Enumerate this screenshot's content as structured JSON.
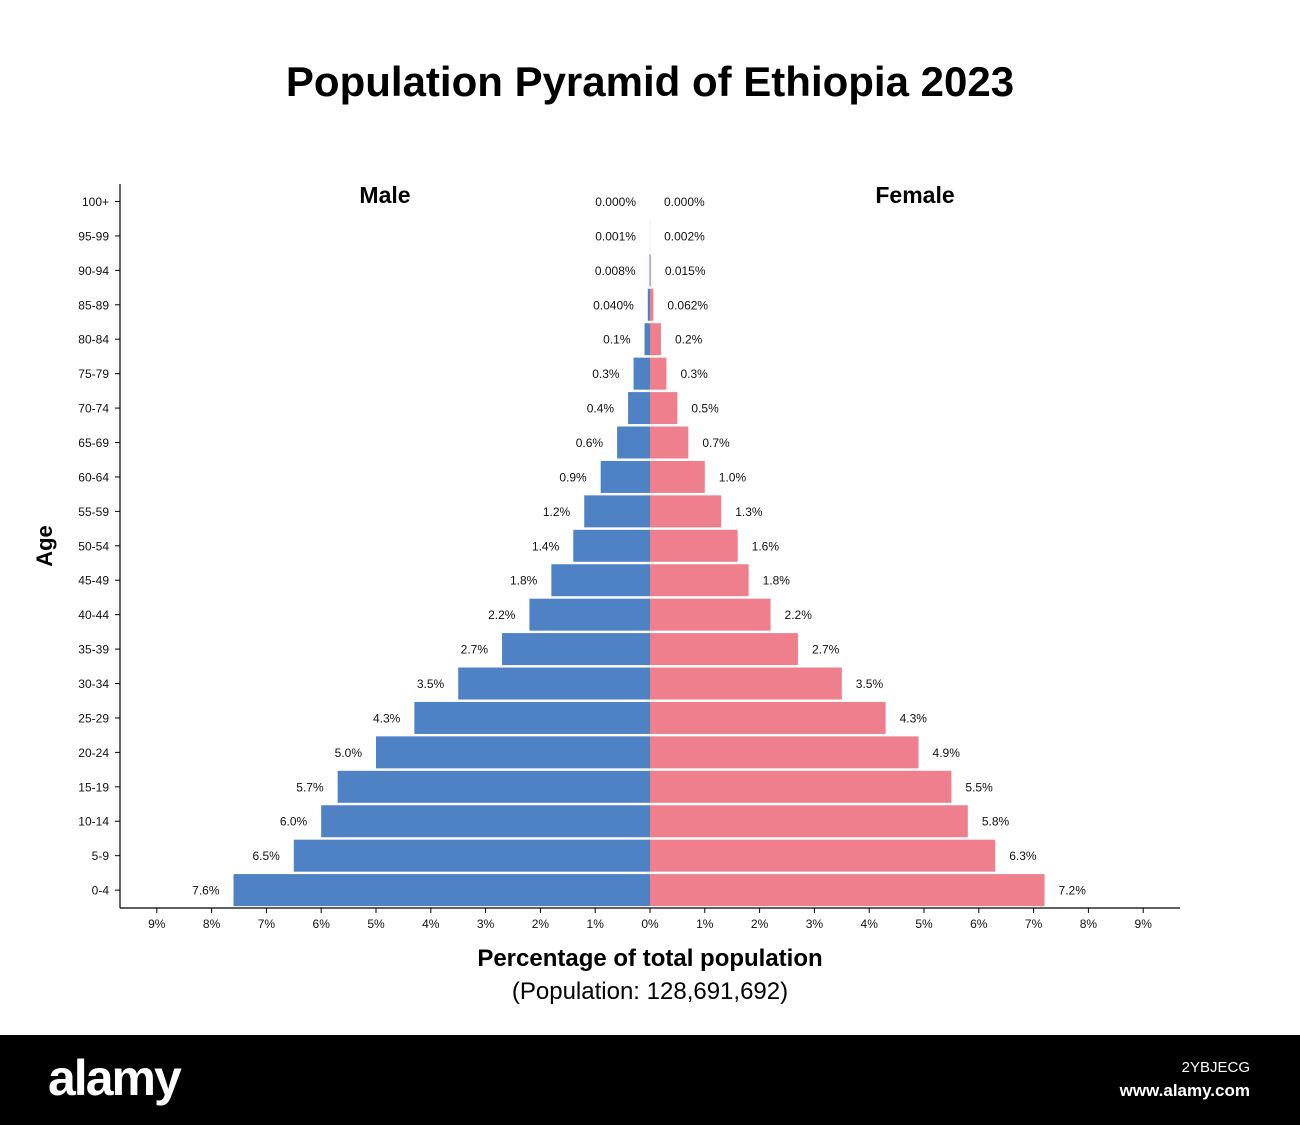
{
  "chart_data": {
    "type": "bar",
    "title": "Population Pyramid of Ethiopia 2023",
    "xlabel": "Percentage of total population",
    "subtitle": "(Population: 128,691,692)",
    "ylabel": "Age",
    "categories": [
      "100+",
      "95-99",
      "90-94",
      "85-89",
      "80-84",
      "75-79",
      "70-74",
      "65-69",
      "60-64",
      "55-59",
      "50-54",
      "45-49",
      "40-44",
      "35-39",
      "30-34",
      "25-29",
      "20-24",
      "15-19",
      "10-14",
      "5-9",
      "0-4"
    ],
    "xlim": [
      -9,
      9
    ],
    "x_ticks": [
      "9%",
      "8%",
      "7%",
      "6%",
      "5%",
      "4%",
      "3%",
      "2%",
      "1%",
      "0%",
      "1%",
      "2%",
      "3%",
      "4%",
      "5%",
      "6%",
      "7%",
      "8%",
      "9%"
    ],
    "legend_position": "top",
    "series": [
      {
        "name": "Male",
        "color": "#4f81c5",
        "values": [
          0.0,
          0.001,
          0.008,
          0.04,
          0.1,
          0.3,
          0.4,
          0.6,
          0.9,
          1.2,
          1.4,
          1.8,
          2.2,
          2.7,
          3.5,
          4.3,
          5.0,
          5.7,
          6.0,
          6.5,
          7.6
        ],
        "labels": [
          "0.000%",
          "0.001%",
          "0.008%",
          "0.040%",
          "0.1%",
          "0.3%",
          "0.4%",
          "0.6%",
          "0.9%",
          "1.2%",
          "1.4%",
          "1.8%",
          "2.2%",
          "2.7%",
          "3.5%",
          "4.3%",
          "5.0%",
          "5.7%",
          "6.0%",
          "6.5%",
          "7.6%"
        ]
      },
      {
        "name": "Female",
        "color": "#ef7f8c",
        "values": [
          0.0,
          0.002,
          0.015,
          0.062,
          0.2,
          0.3,
          0.5,
          0.7,
          1.0,
          1.3,
          1.6,
          1.8,
          2.2,
          2.7,
          3.5,
          4.3,
          4.9,
          5.5,
          5.8,
          6.3,
          7.2
        ],
        "labels": [
          "0.000%",
          "0.002%",
          "0.015%",
          "0.062%",
          "0.2%",
          "0.3%",
          "0.5%",
          "0.7%",
          "1.0%",
          "1.3%",
          "1.6%",
          "1.8%",
          "2.2%",
          "2.7%",
          "3.5%",
          "4.3%",
          "4.9%",
          "5.5%",
          "5.8%",
          "6.3%",
          "7.2%"
        ]
      }
    ],
    "grid": false
  },
  "watermark": {
    "logo": "alamy",
    "image_id": "2YBJECG",
    "url": "www.alamy.com"
  }
}
